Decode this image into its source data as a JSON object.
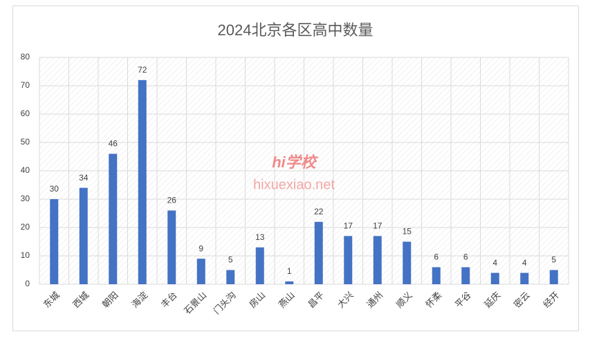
{
  "chart_data": {
    "type": "bar",
    "title": "2024北京各区高中数量",
    "categories": [
      "东城",
      "西城",
      "朝阳",
      "海淀",
      "丰台",
      "石景山",
      "门头沟",
      "房山",
      "燕山",
      "昌平",
      "大兴",
      "通州",
      "顺义",
      "怀柔",
      "平谷",
      "延庆",
      "密云",
      "经开"
    ],
    "values": [
      30,
      34,
      46,
      72,
      26,
      9,
      5,
      13,
      1,
      22,
      17,
      17,
      15,
      6,
      6,
      4,
      4,
      5
    ],
    "color": "#4472c4",
    "ylim": [
      0,
      80
    ],
    "yticks": [
      0,
      10,
      20,
      30,
      40,
      50,
      60,
      70,
      80
    ],
    "grid": true,
    "annotations": [
      "hi学校",
      "hixuexiao.net"
    ]
  }
}
